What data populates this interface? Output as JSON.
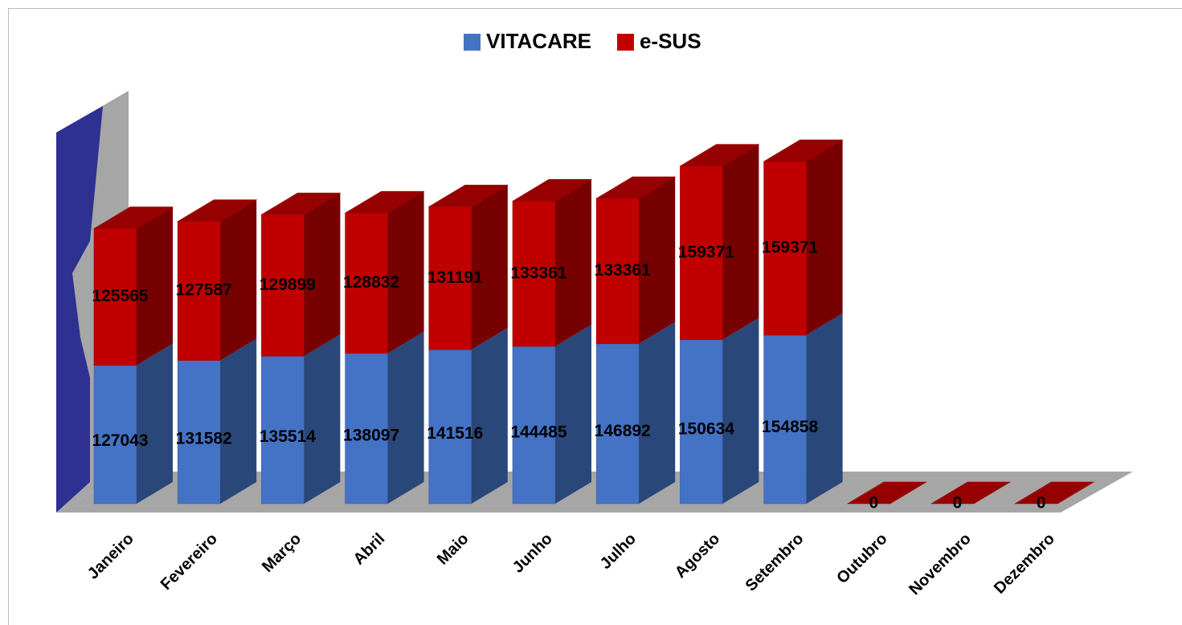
{
  "chart_data": {
    "type": "bar3d_stacked",
    "categories": [
      "Janeiro",
      "Fevereiro",
      "Março",
      "Abril",
      "Maio",
      "Junho",
      "Julho",
      "Agosto",
      "Setembro",
      "Outubro",
      "Novembro",
      "Dezembro"
    ],
    "series": [
      {
        "name": "VITACARE",
        "color": "#4472c4",
        "values": [
          127043,
          131582,
          135514,
          138097,
          141516,
          144485,
          146892,
          150634,
          154858,
          null,
          null,
          null
        ]
      },
      {
        "name": "e-SUS",
        "color": "#c00000",
        "values": [
          125565,
          127587,
          129899,
          128832,
          131191,
          133361,
          133361,
          159371,
          159371,
          0,
          0,
          0
        ]
      }
    ],
    "stacked": true
  }
}
